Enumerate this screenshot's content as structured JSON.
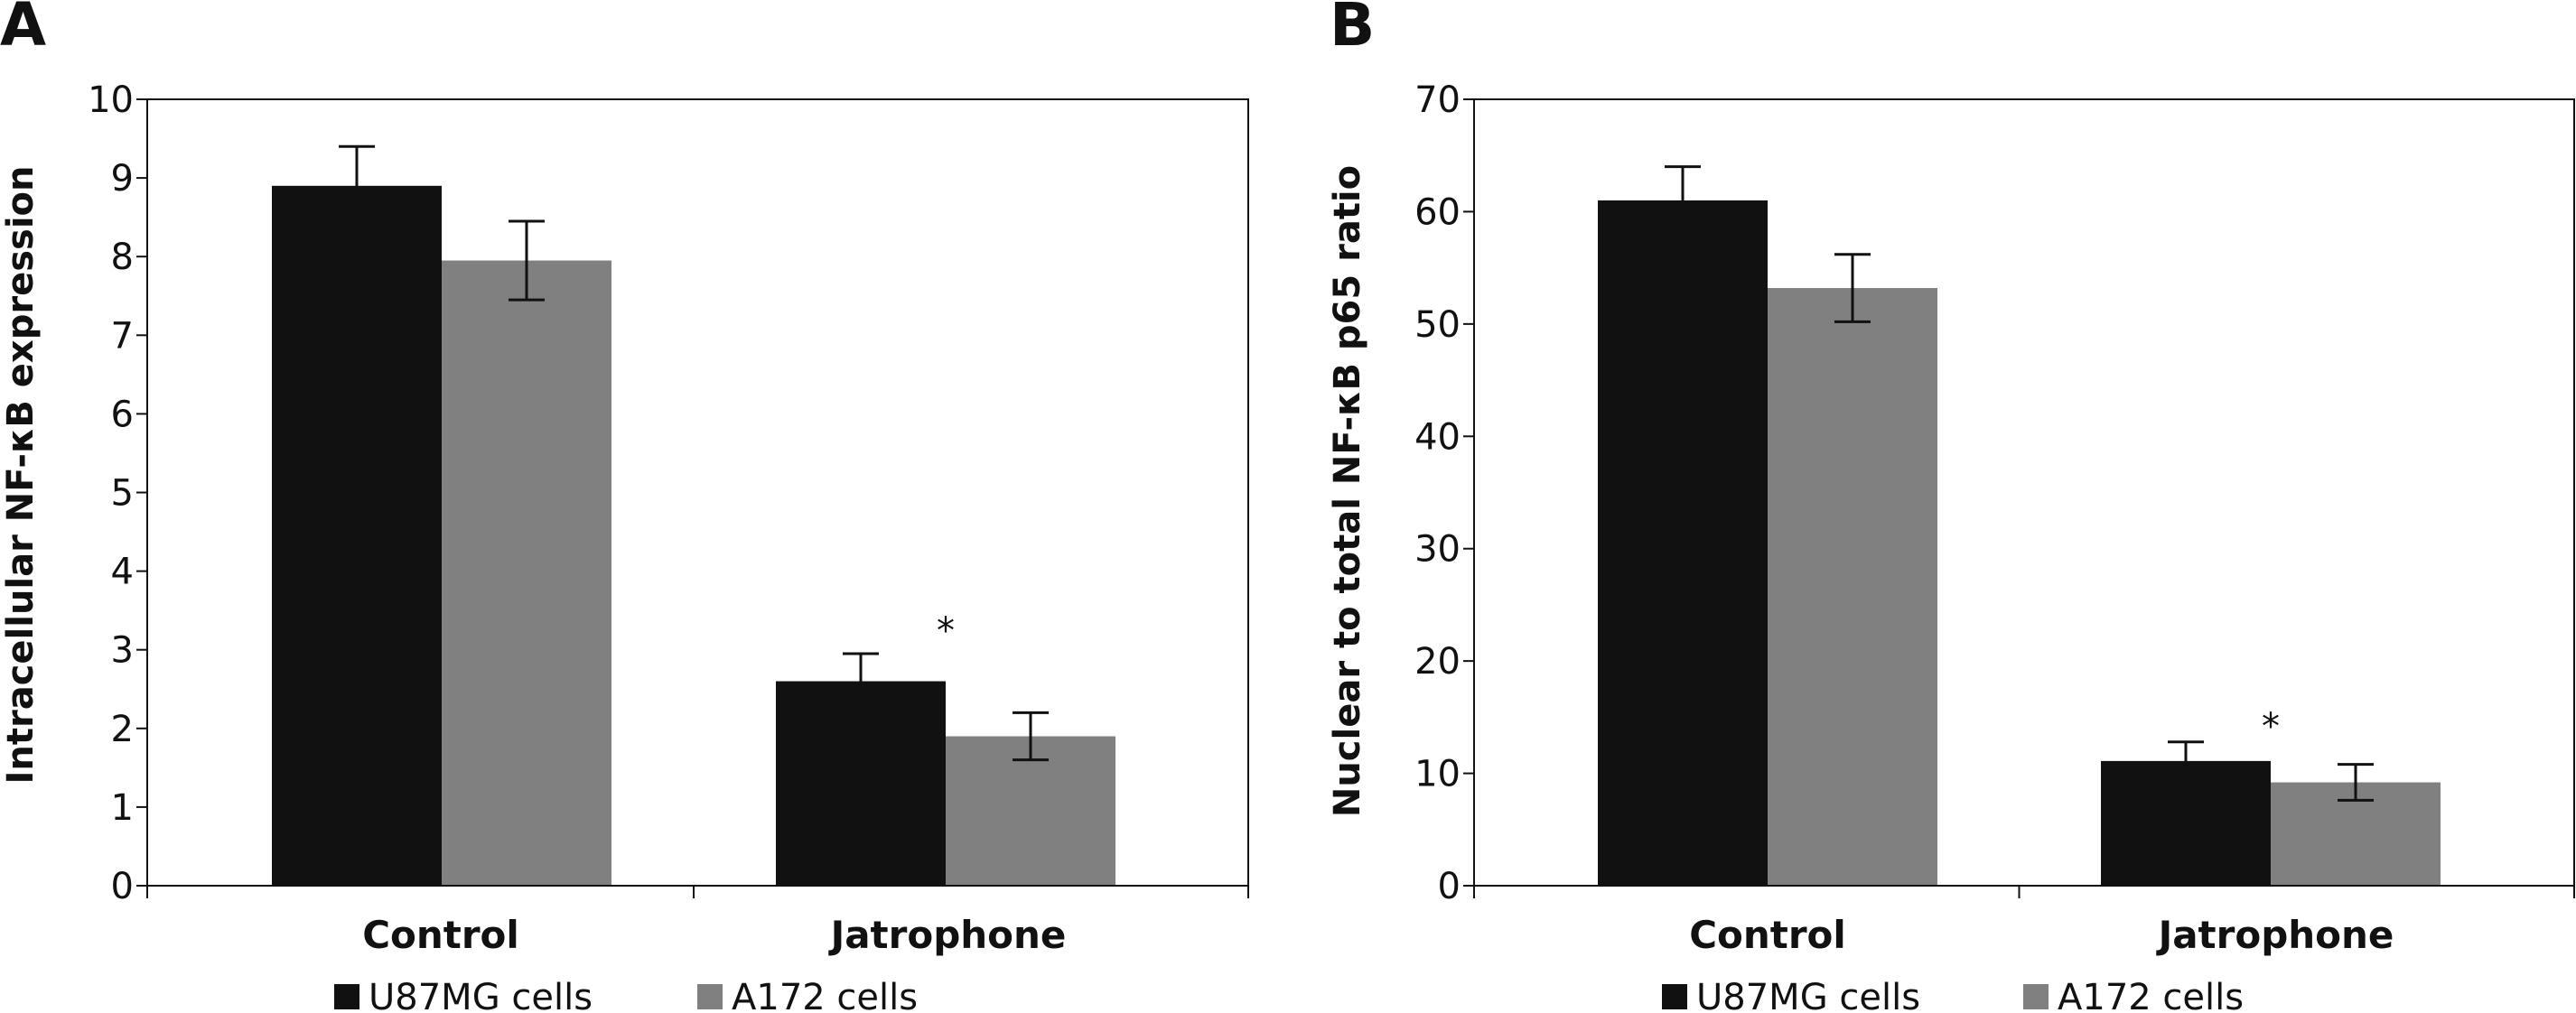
{
  "colors": {
    "series_1": "#111111",
    "series_2": "#808080",
    "axis": "#111111"
  },
  "chart_data": [
    {
      "panel_label": "A",
      "type": "bar",
      "categories": [
        "Control",
        "Jatrophone"
      ],
      "series": [
        {
          "name": "U87MG cells",
          "values": [
            8.9,
            2.6
          ],
          "errors": [
            0.5,
            0.35
          ]
        },
        {
          "name": "A172 cells",
          "values": [
            7.95,
            1.9
          ],
          "errors": [
            0.5,
            0.3
          ]
        }
      ],
      "ylabel": "Intracellular NF-κB expression",
      "xlabel": "",
      "ylim": [
        0,
        10
      ],
      "yticks": [
        "0",
        "1",
        "2",
        "3",
        "4",
        "5",
        "6",
        "7",
        "8",
        "9",
        "10"
      ],
      "annotations": [
        "*"
      ],
      "legend": {
        "placement": "bottom",
        "entries": [
          "U87MG cells",
          "A172 cells"
        ]
      },
      "grid": false
    },
    {
      "panel_label": "B",
      "type": "bar",
      "categories": [
        "Control",
        "Jatrophone"
      ],
      "series": [
        {
          "name": "U87MG cells",
          "values": [
            61,
            11.1
          ],
          "errors": [
            3.0,
            1.7
          ]
        },
        {
          "name": "A172 cells",
          "values": [
            53.2,
            9.2
          ],
          "errors": [
            3.0,
            1.6
          ]
        }
      ],
      "ylabel": "Nuclear to total NF-κB p65 ratio",
      "xlabel": "",
      "ylim": [
        0,
        70
      ],
      "yticks": [
        "0",
        "10",
        "20",
        "30",
        "40",
        "50",
        "60",
        "70"
      ],
      "annotations": [
        "*"
      ],
      "legend": {
        "placement": "bottom",
        "entries": [
          "U87MG cells",
          "A172 cells"
        ]
      },
      "grid": false
    }
  ]
}
